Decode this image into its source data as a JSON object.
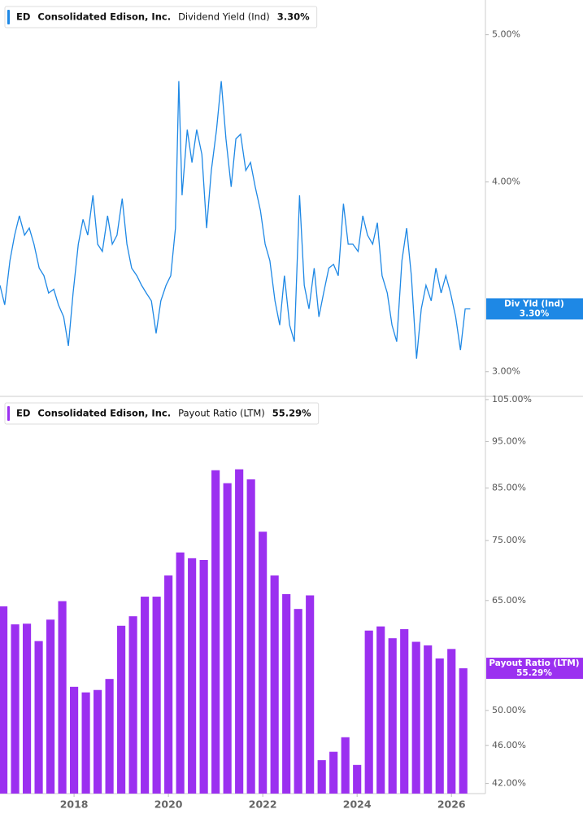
{
  "chart_data": [
    {
      "type": "line",
      "log_scale": true,
      "x": [
        2016.43,
        2016.53,
        2016.64,
        2016.74,
        2016.84,
        2016.95,
        2017.05,
        2017.15,
        2017.26,
        2017.36,
        2017.46,
        2017.57,
        2017.67,
        2017.78,
        2017.88,
        2017.98,
        2018.09,
        2018.19,
        2018.29,
        2018.4,
        2018.5,
        2018.6,
        2018.71,
        2018.81,
        2018.91,
        2019.02,
        2019.12,
        2019.22,
        2019.33,
        2019.43,
        2019.53,
        2019.64,
        2019.74,
        2019.84,
        2019.95,
        2020.05,
        2020.15,
        2020.22,
        2020.29,
        2020.4,
        2020.5,
        2020.6,
        2020.71,
        2020.81,
        2020.91,
        2021.02,
        2021.12,
        2021.22,
        2021.33,
        2021.43,
        2021.53,
        2021.64,
        2021.74,
        2021.84,
        2021.95,
        2022.05,
        2022.15,
        2022.26,
        2022.36,
        2022.46,
        2022.57,
        2022.67,
        2022.78,
        2022.88,
        2022.98,
        2023.09,
        2023.19,
        2023.29,
        2023.4,
        2023.5,
        2023.6,
        2023.71,
        2023.81,
        2023.91,
        2024.02,
        2024.12,
        2024.22,
        2024.33,
        2024.43,
        2024.53,
        2024.64,
        2024.74,
        2024.84,
        2024.95,
        2025.05,
        2025.15,
        2025.26,
        2025.36,
        2025.46,
        2025.57,
        2025.67,
        2025.78,
        2025.88,
        2025.98,
        2026.09,
        2026.19,
        2026.29,
        2026.4
      ],
      "series": [
        {
          "ticker": "ED",
          "company": "Consolidated Edison, Inc.",
          "name": "Dividend Yield (Ind)",
          "short_name": "Div Yld (Ind)",
          "last_label": "3.30%",
          "color": "#1e88e5",
          "values": [
            3.42,
            3.32,
            3.55,
            3.69,
            3.8,
            3.69,
            3.73,
            3.64,
            3.51,
            3.47,
            3.38,
            3.4,
            3.32,
            3.26,
            3.12,
            3.38,
            3.64,
            3.78,
            3.69,
            3.92,
            3.64,
            3.6,
            3.8,
            3.64,
            3.69,
            3.9,
            3.64,
            3.51,
            3.47,
            3.42,
            3.38,
            3.34,
            3.18,
            3.34,
            3.42,
            3.47,
            3.73,
            4.66,
            3.92,
            4.33,
            4.12,
            4.33,
            4.17,
            3.73,
            4.07,
            4.33,
            4.66,
            4.27,
            3.97,
            4.27,
            4.3,
            4.07,
            4.12,
            3.97,
            3.83,
            3.64,
            3.55,
            3.34,
            3.22,
            3.47,
            3.22,
            3.14,
            3.92,
            3.42,
            3.3,
            3.51,
            3.26,
            3.38,
            3.51,
            3.53,
            3.47,
            3.87,
            3.64,
            3.64,
            3.6,
            3.8,
            3.69,
            3.64,
            3.76,
            3.47,
            3.38,
            3.22,
            3.14,
            3.55,
            3.73,
            3.47,
            3.06,
            3.3,
            3.42,
            3.34,
            3.51,
            3.38,
            3.47,
            3.38,
            3.26,
            3.1,
            3.3,
            3.3
          ]
        }
      ],
      "xlim": [
        2016.43,
        2026.72
      ],
      "ylim": [
        2.89,
        5.27
      ],
      "yticks": [
        {
          "value": 3,
          "label": "3.00%"
        },
        {
          "value": 4,
          "label": "4.00%"
        },
        {
          "value": 5,
          "label": "5.00%"
        }
      ]
    },
    {
      "type": "bar",
      "log_scale": true,
      "x": [
        2016.5,
        2016.75,
        2017,
        2017.25,
        2017.5,
        2017.75,
        2018,
        2018.25,
        2018.5,
        2018.75,
        2019,
        2019.25,
        2019.5,
        2019.75,
        2020,
        2020.25,
        2020.5,
        2020.75,
        2021,
        2021.25,
        2021.5,
        2021.75,
        2022,
        2022.25,
        2022.5,
        2022.75,
        2023,
        2023.25,
        2023.5,
        2023.75,
        2024,
        2024.25,
        2024.5,
        2024.75,
        2025,
        2025.25,
        2025.5,
        2025.75,
        2026,
        2026.25
      ],
      "series": [
        {
          "ticker": "ED",
          "company": "Consolidated Edison, Inc.",
          "name": "Payout Ratio (LTM)",
          "last_label": "55.29%",
          "color": "#9b30f0",
          "values": [
            64.1,
            61.4,
            61.5,
            59.0,
            62.1,
            64.9,
            52.9,
            52.2,
            52.5,
            53.9,
            61.2,
            62.6,
            65.6,
            65.6,
            69.0,
            72.9,
            71.9,
            71.6,
            88.7,
            86.0,
            88.9,
            86.8,
            76.6,
            69.0,
            66.0,
            63.7,
            65.8,
            44.4,
            45.3,
            46.9,
            43.9,
            60.5,
            61.1,
            59.4,
            60.7,
            58.9,
            58.4,
            56.6,
            57.9,
            55.29
          ]
        }
      ],
      "xlim": [
        2016.43,
        2026.72
      ],
      "xticks": [
        2018,
        2020,
        2022,
        2024,
        2026
      ],
      "ylim": [
        41.0,
        105.8
      ],
      "yticks": [
        {
          "value": 42,
          "label": "42.00%"
        },
        {
          "value": 46,
          "label": "46.00%"
        },
        {
          "value": 50,
          "label": "50.00%"
        },
        {
          "value": 65,
          "label": "65.00%"
        },
        {
          "value": 75,
          "label": "75.00%"
        },
        {
          "value": 85,
          "label": "85.00%"
        },
        {
          "value": 95,
          "label": "95.00%"
        },
        {
          "value": 105,
          "label": "105.00%"
        }
      ]
    }
  ]
}
